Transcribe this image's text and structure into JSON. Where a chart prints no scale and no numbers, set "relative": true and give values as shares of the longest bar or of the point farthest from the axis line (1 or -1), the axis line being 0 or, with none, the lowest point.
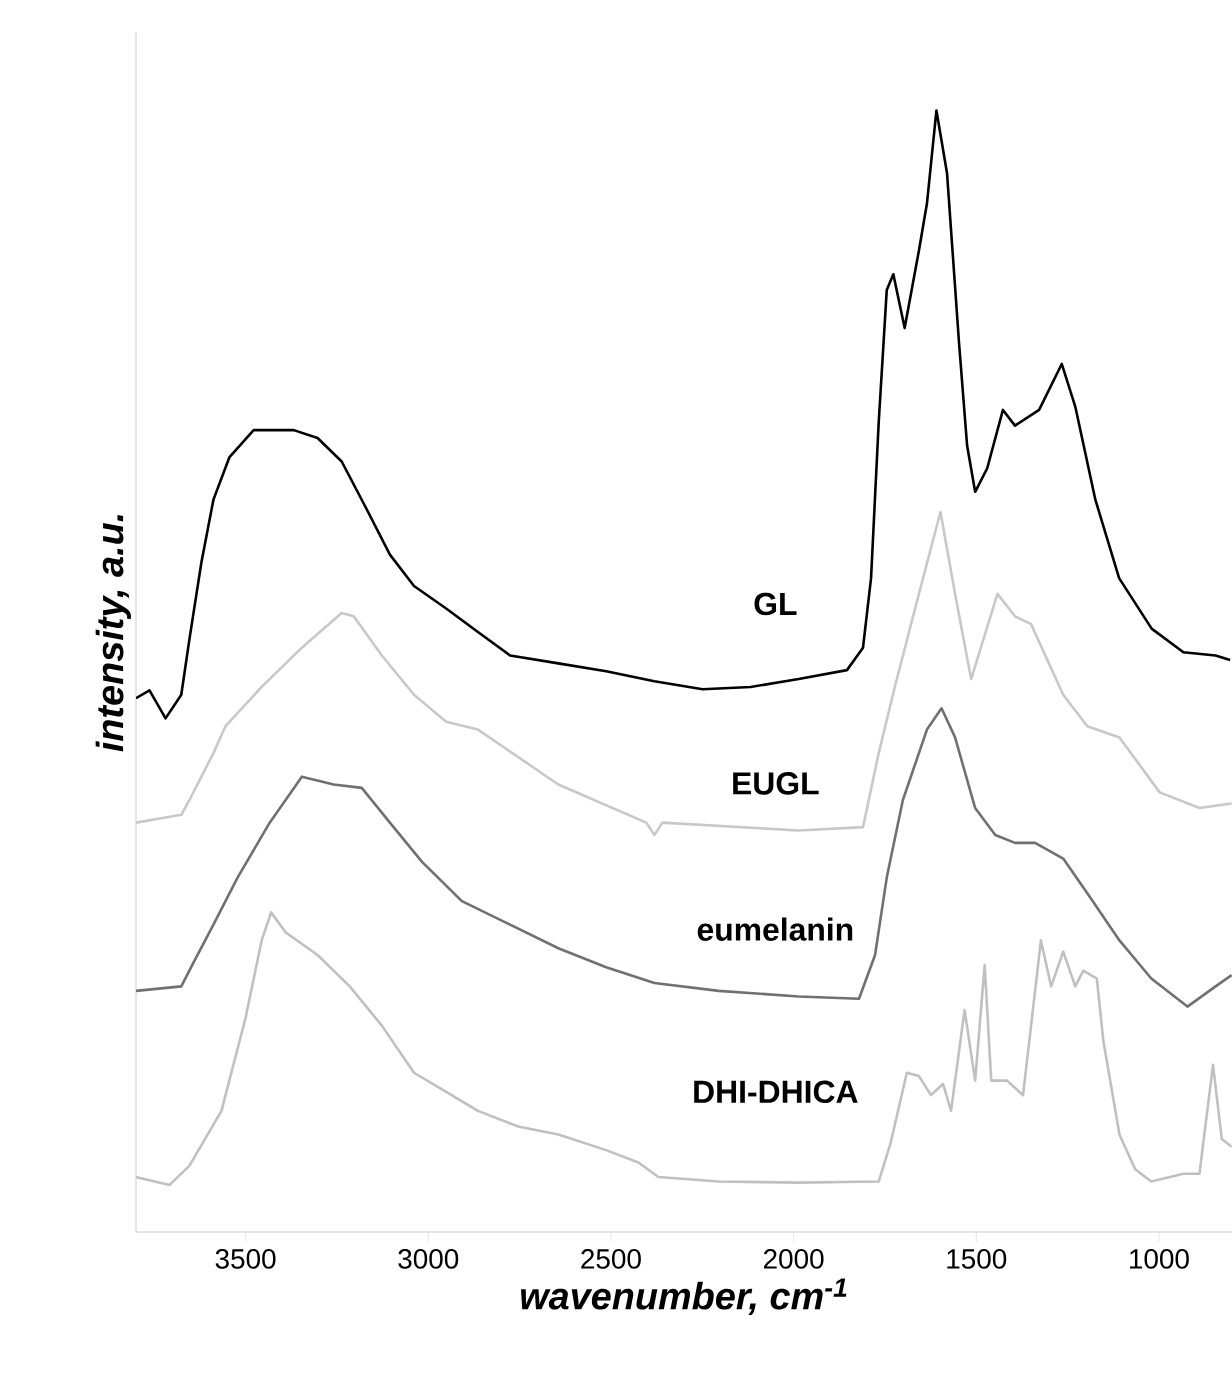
{
  "chart_data": {
    "type": "line",
    "relative": true,
    "xlabel": "wavenumber, cm$^{-1}$",
    "ylabel": "intensity, a.u.",
    "xlim": [
      3800,
      800
    ],
    "xticks": [
      3500,
      3000,
      2500,
      2000,
      1500,
      1000
    ],
    "tick_labels": "x",
    "grid": false,
    "legend": false,
    "marker": "none",
    "line_style": "solid",
    "series": [
      {
        "name": "GL",
        "color": "#000000",
        "x": [
          3800,
          3763,
          3719,
          3676,
          3654,
          3621,
          3588,
          3544,
          3478,
          3368,
          3303,
          3237,
          3171,
          3105,
          3039,
          2951,
          2864,
          2776,
          2644,
          2513,
          2381,
          2249,
          2118,
          1986,
          1854,
          1810,
          1788,
          1767,
          1745,
          1727,
          1696,
          1657,
          1635,
          1609,
          1580,
          1547,
          1525,
          1503,
          1470,
          1427,
          1394,
          1328,
          1266,
          1229,
          1174,
          1109,
          1020,
          933,
          845,
          805
        ],
        "values": [
          0.476,
          0.483,
          0.458,
          0.479,
          0.528,
          0.597,
          0.653,
          0.691,
          0.715,
          0.715,
          0.708,
          0.687,
          0.646,
          0.604,
          0.576,
          0.556,
          0.535,
          0.514,
          0.507,
          0.5,
          0.491,
          0.484,
          0.486,
          0.493,
          0.501,
          0.521,
          0.583,
          0.722,
          0.84,
          0.854,
          0.806,
          0.875,
          0.917,
          1.0,
          0.944,
          0.792,
          0.701,
          0.66,
          0.681,
          0.733,
          0.719,
          0.733,
          0.774,
          0.736,
          0.653,
          0.583,
          0.538,
          0.517,
          0.514,
          0.51
        ]
      },
      {
        "name": "EUGL",
        "color": "#c8c8c8",
        "x": [
          3800,
          3676,
          3654,
          3588,
          3555,
          3456,
          3346,
          3237,
          3204,
          3127,
          3039,
          2951,
          2864,
          2644,
          2403,
          2381,
          2359,
          1986,
          1810,
          1767,
          1723,
          1657,
          1598,
          1558,
          1514,
          1442,
          1394,
          1350,
          1262,
          1196,
          1108,
          998,
          889,
          801
        ],
        "values": [
          0.365,
          0.372,
          0.385,
          0.427,
          0.451,
          0.486,
          0.521,
          0.552,
          0.549,
          0.514,
          0.479,
          0.455,
          0.448,
          0.399,
          0.365,
          0.354,
          0.365,
          0.358,
          0.361,
          0.427,
          0.486,
          0.569,
          0.642,
          0.569,
          0.493,
          0.569,
          0.549,
          0.542,
          0.479,
          0.451,
          0.441,
          0.392,
          0.378,
          0.382
        ]
      },
      {
        "name": "eumelanin",
        "color": "#707070",
        "x": [
          3800,
          3676,
          3643,
          3588,
          3522,
          3434,
          3346,
          3259,
          3182,
          3105,
          3017,
          2908,
          2776,
          2644,
          2513,
          2381,
          2205,
          1986,
          1821,
          1777,
          1745,
          1701,
          1635,
          1595,
          1558,
          1503,
          1448,
          1394,
          1339,
          1262,
          1196,
          1108,
          1021,
          922,
          845,
          801
        ],
        "values": [
          0.215,
          0.219,
          0.24,
          0.274,
          0.316,
          0.365,
          0.406,
          0.399,
          0.396,
          0.365,
          0.33,
          0.295,
          0.274,
          0.253,
          0.236,
          0.222,
          0.215,
          0.21,
          0.208,
          0.247,
          0.316,
          0.385,
          0.448,
          0.467,
          0.441,
          0.378,
          0.354,
          0.347,
          0.347,
          0.333,
          0.302,
          0.26,
          0.226,
          0.201,
          0.219,
          0.229
        ]
      },
      {
        "name": "DHI-DHICA",
        "color": "#c0c0c0",
        "x": [
          3800,
          3708,
          3654,
          3566,
          3500,
          3456,
          3430,
          3390,
          3303,
          3215,
          3127,
          3039,
          2951,
          2864,
          2754,
          2644,
          2513,
          2425,
          2370,
          2205,
          1986,
          1767,
          1734,
          1690,
          1657,
          1624,
          1591,
          1569,
          1532,
          1503,
          1477,
          1459,
          1416,
          1372,
          1323,
          1295,
          1262,
          1229,
          1207,
          1170,
          1152,
          1108,
          1065,
          1021,
          933,
          889,
          852,
          828,
          801
        ],
        "values": [
          0.049,
          0.042,
          0.059,
          0.108,
          0.191,
          0.26,
          0.285,
          0.267,
          0.247,
          0.219,
          0.184,
          0.142,
          0.125,
          0.108,
          0.094,
          0.087,
          0.073,
          0.062,
          0.049,
          0.045,
          0.044,
          0.045,
          0.08,
          0.142,
          0.139,
          0.122,
          0.132,
          0.108,
          0.198,
          0.135,
          0.238,
          0.135,
          0.135,
          0.122,
          0.26,
          0.219,
          0.25,
          0.219,
          0.233,
          0.226,
          0.17,
          0.087,
          0.056,
          0.045,
          0.052,
          0.052,
          0.149,
          0.083,
          0.076
        ]
      }
    ]
  }
}
